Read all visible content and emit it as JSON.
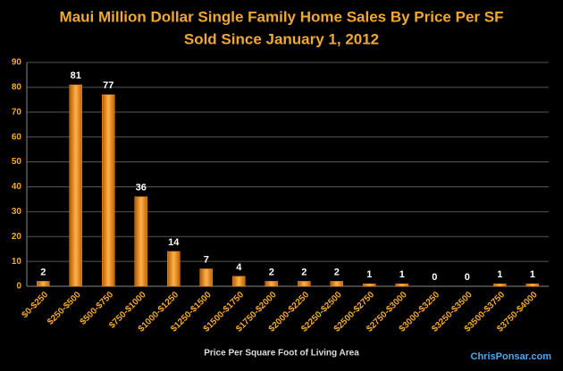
{
  "chart_data": {
    "type": "bar",
    "title": "Maui Million Dollar Single Family Home Sales By Price Per SF",
    "subtitle": "Sold Since January 1, 2012",
    "x_label": "Price Per Square Foot of Living Area",
    "watermark": "ChrisPonsar.com",
    "categories": [
      "$0-$250",
      "$250-$500",
      "$500-$750",
      "$750-$1000",
      "$1000-$1250",
      "$1250-$1500",
      "$1500-$1750",
      "$1750-$2000",
      "$2000-$2250",
      "$2250-$2500",
      "$2500-$2750",
      "$2750-$3000",
      "$3000-$3250",
      "$3250-$3500",
      "$3500-$3750",
      "$3750-$4000"
    ],
    "values": [
      2,
      81,
      77,
      36,
      14,
      7,
      4,
      2,
      2,
      2,
      1,
      1,
      0,
      0,
      1,
      1
    ],
    "color": "#f08a1c",
    "ylim": [
      0,
      90
    ],
    "yticks": [
      0,
      10,
      20,
      30,
      40,
      50,
      60,
      70,
      80,
      90
    ],
    "grid": true
  }
}
